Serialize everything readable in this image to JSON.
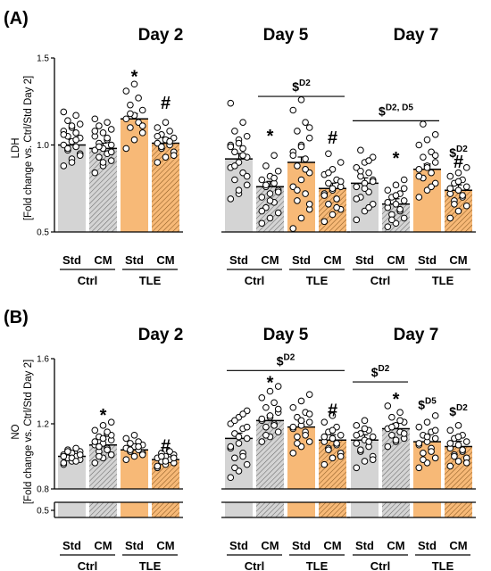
{
  "chart_data": [
    {
      "type": "bar",
      "panel_label": "(A)",
      "ylabel": "LDH",
      "ylabel2": "[Fold change vs. Ctrl/Std Day 2]",
      "ylim": [
        0.5,
        1.5
      ],
      "yticks": [
        "0.5",
        "1.0",
        "1.5"
      ],
      "categories": [
        "Std",
        "CM",
        "Std",
        "CM"
      ],
      "groups": [
        "Ctrl",
        "TLE"
      ],
      "colors": {
        "Ctrl": "#d4d4d4",
        "TLE": "#f7b977"
      },
      "subplots": [
        {
          "title": "Day 2",
          "values": [
            1.0,
            0.98,
            1.15,
            1.01
          ],
          "points": [
            [
              0.88,
              0.92,
              0.95,
              0.97,
              0.99,
              1.0,
              1.02,
              1.04,
              1.05,
              1.07,
              1.08,
              1.1,
              1.12,
              1.14,
              1.17,
              1.19,
              0.9,
              0.94,
              0.98,
              1.03,
              1.06,
              1.11
            ],
            [
              0.84,
              0.88,
              0.91,
              0.93,
              0.95,
              0.97,
              0.98,
              1.0,
              1.01,
              1.03,
              1.05,
              1.07,
              1.09,
              1.11,
              1.13,
              1.15,
              0.9,
              0.96,
              0.99,
              1.04,
              1.08
            ],
            [
              0.98,
              1.03,
              1.07,
              1.1,
              1.13,
              1.15,
              1.17,
              1.2,
              1.23,
              1.27,
              1.31,
              1.35,
              1.11,
              1.18
            ],
            [
              0.9,
              0.93,
              0.96,
              0.98,
              1.0,
              1.01,
              1.03,
              1.04,
              1.06,
              1.08,
              1.1,
              1.13,
              0.94,
              0.99,
              1.02,
              1.05
            ]
          ],
          "marks": [
            {
              "bar": 2,
              "text": "*",
              "y": 1.4
            },
            {
              "bar": 3,
              "text": "#",
              "y": 1.25
            }
          ],
          "dollars": []
        },
        {
          "title": "Day 5",
          "values": [
            0.92,
            0.76,
            0.9,
            0.75
          ],
          "points": [
            [
              0.69,
              0.72,
              0.77,
              0.8,
              0.84,
              0.87,
              0.9,
              0.93,
              0.96,
              0.98,
              1.0,
              1.03,
              1.05,
              1.08,
              1.13,
              1.24,
              0.74,
              0.82,
              0.88,
              0.94,
              0.99,
              1.01
            ],
            [
              0.55,
              0.58,
              0.61,
              0.64,
              0.67,
              0.7,
              0.72,
              0.74,
              0.76,
              0.78,
              0.8,
              0.82,
              0.85,
              0.88,
              0.94,
              0.62,
              0.68,
              0.73,
              0.77,
              0.81
            ],
            [
              0.52,
              0.58,
              0.63,
              0.68,
              0.72,
              0.76,
              0.8,
              0.84,
              0.88,
              0.92,
              0.96,
              1.0,
              1.04,
              1.08,
              1.13,
              1.2,
              1.26,
              0.66,
              0.74,
              0.86,
              0.94,
              0.99,
              1.1
            ],
            [
              0.56,
              0.6,
              0.63,
              0.66,
              0.69,
              0.72,
              0.74,
              0.76,
              0.78,
              0.8,
              0.83,
              0.86,
              0.9,
              0.95,
              0.64,
              0.71,
              0.75,
              0.79,
              0.84
            ]
          ],
          "marks": [
            {
              "bar": 1,
              "text": "*",
              "y": 1.06
            },
            {
              "bar": 3,
              "text": "#",
              "y": 1.05
            }
          ],
          "dollars": [
            {
              "text": "$",
              "sup": "D2",
              "from": 1,
              "to": 3,
              "y": 1.31
            }
          ]
        },
        {
          "title": "Day 7",
          "values": [
            0.78,
            0.66,
            0.86,
            0.74
          ],
          "points": [
            [
              0.57,
              0.62,
              0.66,
              0.7,
              0.73,
              0.76,
              0.78,
              0.8,
              0.82,
              0.84,
              0.87,
              0.9,
              0.93,
              0.97,
              0.64,
              0.69,
              0.75,
              0.79,
              0.85,
              0.91
            ],
            [
              0.53,
              0.55,
              0.58,
              0.6,
              0.62,
              0.64,
              0.66,
              0.68,
              0.7,
              0.72,
              0.74,
              0.77,
              0.8,
              0.57,
              0.63,
              0.67,
              0.71,
              0.75
            ],
            [
              0.7,
              0.74,
              0.78,
              0.81,
              0.84,
              0.86,
              0.88,
              0.9,
              0.93,
              0.96,
              1.0,
              1.03,
              1.06,
              1.12,
              0.76,
              0.82,
              0.87,
              0.94
            ],
            [
              0.58,
              0.62,
              0.65,
              0.68,
              0.7,
              0.72,
              0.74,
              0.76,
              0.78,
              0.8,
              0.82,
              0.84,
              0.87,
              0.66,
              0.71,
              0.75,
              0.79
            ]
          ],
          "marks": [
            {
              "bar": 1,
              "text": "*",
              "y": 0.93
            },
            {
              "bar": 3,
              "text": "#",
              "y": 0.91
            }
          ],
          "dollars": [
            {
              "text": "$",
              "sup": "D2, D5",
              "from": 0,
              "to": 2,
              "y": 1.17
            },
            {
              "text": "$",
              "sup": "D2",
              "bar": 3,
              "y": 0.93
            }
          ]
        }
      ]
    },
    {
      "type": "bar",
      "panel_label": "(B)",
      "ylabel": "NO",
      "ylabel2": "[Fold change vs. Ctrl/Std Day 2]",
      "ylim": [
        0.8,
        1.6
      ],
      "axis_break": [
        0.5,
        0.8
      ],
      "yticks": [
        "0.5",
        "0.8",
        "1.2",
        "1.6"
      ],
      "categories": [
        "Std",
        "CM",
        "Std",
        "CM"
      ],
      "groups": [
        "Ctrl",
        "TLE"
      ],
      "colors": {
        "Ctrl": "#d4d4d4",
        "TLE": "#f7b977"
      },
      "subplots": [
        {
          "title": "Day 2",
          "values": [
            1.0,
            1.07,
            1.04,
            0.98
          ],
          "points": [
            [
              0.95,
              0.97,
              0.98,
              0.99,
              1.0,
              1.01,
              1.02,
              1.03,
              1.04,
              1.05,
              0.96,
              0.99,
              1.01,
              1.03,
              0.97,
              1.0
            ],
            [
              0.96,
              0.99,
              1.01,
              1.03,
              1.05,
              1.07,
              1.08,
              1.1,
              1.12,
              1.14,
              1.16,
              1.19,
              1.21,
              1.0,
              1.04,
              1.09,
              1.11,
              1.13,
              1.06,
              1.15
            ],
            [
              0.98,
              1.0,
              1.02,
              1.03,
              1.04,
              1.05,
              1.06,
              1.07,
              1.08,
              1.09,
              1.11,
              1.13,
              1.01,
              1.04,
              1.06
            ],
            [
              0.93,
              0.95,
              0.96,
              0.97,
              0.98,
              0.99,
              1.0,
              1.01,
              1.02,
              1.03,
              0.94,
              0.97,
              0.99,
              1.0
            ]
          ],
          "marks": [
            {
              "bar": 1,
              "text": "*",
              "y": 1.26
            },
            {
              "bar": 3,
              "text": "#",
              "y": 1.07
            }
          ],
          "dollars": []
        },
        {
          "title": "Day 5",
          "values": [
            1.11,
            1.22,
            1.18,
            1.1
          ],
          "points": [
            [
              0.87,
              0.91,
              0.95,
              0.99,
              1.02,
              1.05,
              1.08,
              1.11,
              1.14,
              1.17,
              1.2,
              1.24,
              1.28,
              0.93,
              1.0,
              1.06,
              1.12,
              1.18,
              1.22,
              1.26
            ],
            [
              1.09,
              1.12,
              1.15,
              1.18,
              1.2,
              1.22,
              1.24,
              1.27,
              1.3,
              1.33,
              1.36,
              1.4,
              1.43,
              1.13,
              1.19,
              1.23,
              1.25,
              1.29
            ],
            [
              1.02,
              1.06,
              1.09,
              1.12,
              1.15,
              1.17,
              1.19,
              1.21,
              1.24,
              1.27,
              1.3,
              1.34,
              1.38,
              1.08,
              1.13,
              1.18,
              1.22,
              1.26
            ],
            [
              0.95,
              0.99,
              1.02,
              1.05,
              1.07,
              1.09,
              1.11,
              1.13,
              1.15,
              1.18,
              1.21,
              1.25,
              1.0,
              1.04,
              1.08,
              1.12,
              1.16
            ]
          ],
          "marks": [
            {
              "bar": 1,
              "text": "*",
              "y": 1.46
            },
            {
              "bar": 3,
              "text": "#",
              "y": 1.29
            }
          ],
          "dollars": [
            {
              "text": "$",
              "sup": "D2",
              "from": 0,
              "to": 3,
              "y": 1.56
            }
          ]
        },
        {
          "title": "Day 7",
          "values": [
            1.1,
            1.17,
            1.09,
            1.06
          ],
          "points": [
            [
              0.93,
              0.97,
              1.0,
              1.03,
              1.06,
              1.08,
              1.1,
              1.12,
              1.14,
              1.16,
              1.19,
              1.22,
              0.98,
              1.04,
              1.09,
              1.13,
              1.17
            ],
            [
              1.06,
              1.09,
              1.11,
              1.13,
              1.15,
              1.17,
              1.19,
              1.21,
              1.24,
              1.27,
              1.31,
              1.1,
              1.14,
              1.18,
              1.22
            ],
            [
              0.93,
              0.96,
              0.99,
              1.02,
              1.05,
              1.07,
              1.09,
              1.11,
              1.13,
              1.15,
              1.18,
              1.21,
              1.25,
              0.98,
              1.03,
              1.08,
              1.12,
              1.16
            ],
            [
              0.94,
              0.97,
              0.99,
              1.01,
              1.03,
              1.05,
              1.07,
              1.09,
              1.11,
              1.13,
              1.16,
              1.19,
              0.96,
              1.0,
              1.04,
              1.08,
              1.12
            ]
          ],
          "marks": [
            {
              "bar": 1,
              "text": "*",
              "y": 1.36
            }
          ],
          "dollars": [
            {
              "text": "$",
              "sup": "D2",
              "from": 0,
              "to": 1,
              "y": 1.49
            },
            {
              "text": "$",
              "sup": "D5",
              "bar": 2,
              "y": 1.29
            },
            {
              "text": "$",
              "sup": "D2",
              "bar": 3,
              "y": 1.25
            }
          ]
        }
      ]
    }
  ]
}
